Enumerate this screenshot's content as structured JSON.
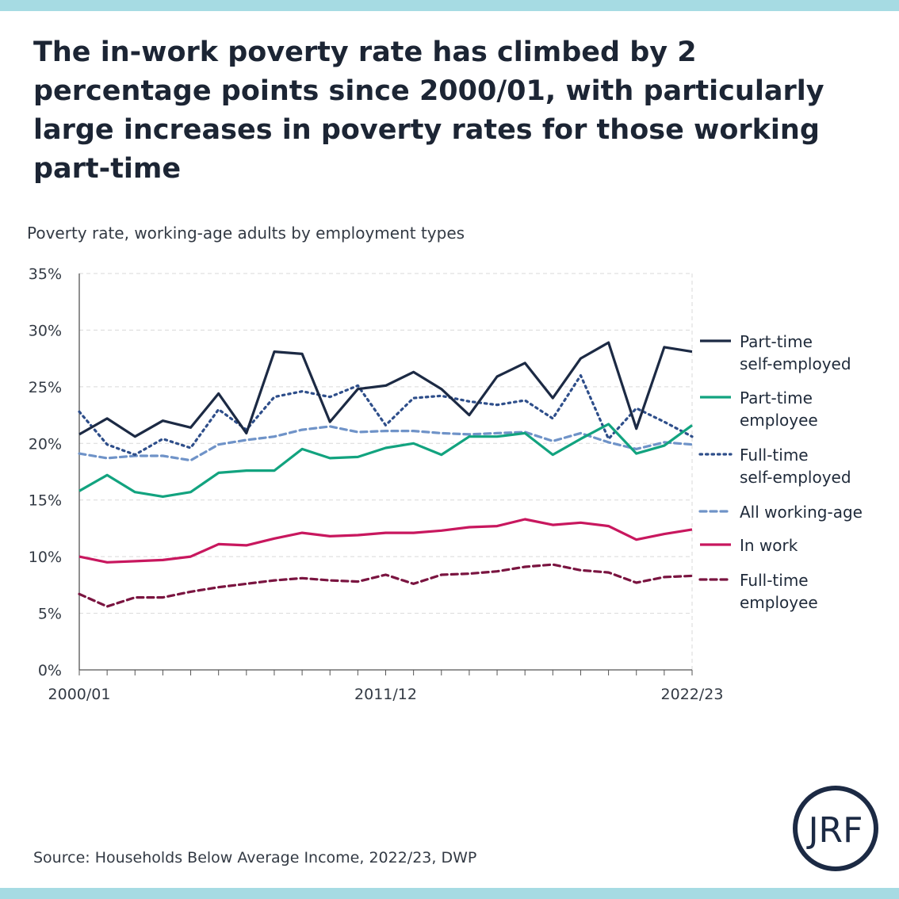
{
  "title": "The in-work poverty rate has climbed by 2 percentage points since 2000/01, with particularly large increases in poverty rates for those working part-time",
  "source": "Source: Households Below Average Income, 2022/23, DWP",
  "logo_text": "JRF",
  "chart_data": {
    "type": "line",
    "title": "",
    "subtitle": "Poverty rate, working-age adults by employment types",
    "xlabel": "",
    "ylabel": "",
    "ylim": [
      0,
      35
    ],
    "yticks": [
      "0%",
      "5%",
      "10%",
      "15%",
      "20%",
      "25%",
      "30%",
      "35%"
    ],
    "grid": true,
    "legend_position": "right",
    "categories": [
      "2000/01",
      "2001/02",
      "2002/03",
      "2003/04",
      "2004/05",
      "2005/06",
      "2006/07",
      "2007/08",
      "2008/09",
      "2009/10",
      "2010/11",
      "2011/12",
      "2012/13",
      "2013/14",
      "2014/15",
      "2015/16",
      "2016/17",
      "2017/18",
      "2018/19",
      "2019/20",
      "2020/21",
      "2021/22",
      "2022/23"
    ],
    "x_tick_labels": [
      "2000/01",
      "2011/12",
      "2022/23"
    ],
    "series": [
      {
        "name": "Part-time self-employed",
        "color": "#1c2a44",
        "style": "solid",
        "values": [
          20.8,
          22.2,
          20.6,
          22.0,
          21.4,
          24.4,
          20.9,
          28.1,
          27.9,
          21.9,
          24.8,
          25.1,
          26.3,
          24.8,
          22.5,
          25.9,
          27.1,
          24.0,
          27.5,
          28.9,
          21.3,
          28.5,
          28.1
        ]
      },
      {
        "name": "Part-time employee",
        "color": "#12a37f",
        "style": "solid",
        "values": [
          15.8,
          17.2,
          15.7,
          15.3,
          15.7,
          17.4,
          17.6,
          17.6,
          19.5,
          18.7,
          18.8,
          19.6,
          20.0,
          19.0,
          20.6,
          20.6,
          20.9,
          19.0,
          20.4,
          21.7,
          19.1,
          19.8,
          21.6
        ]
      },
      {
        "name": "Full-time self-employed",
        "color": "#2e4e8a",
        "style": "dotted",
        "values": [
          22.8,
          19.9,
          19.0,
          20.4,
          19.6,
          23.0,
          21.2,
          24.1,
          24.6,
          24.1,
          25.1,
          21.6,
          24.0,
          24.2,
          23.7,
          23.4,
          23.8,
          22.2,
          26.0,
          20.4,
          23.1,
          21.9,
          20.6
        ]
      },
      {
        "name": "All working-age",
        "color": "#6f93c8",
        "style": "dashed",
        "values": [
          19.1,
          18.7,
          18.9,
          18.9,
          18.5,
          19.9,
          20.3,
          20.6,
          21.2,
          21.5,
          21.0,
          21.1,
          21.1,
          20.9,
          20.8,
          20.9,
          21.0,
          20.2,
          20.9,
          20.1,
          19.5,
          20.1,
          19.9
        ]
      },
      {
        "name": "In work",
        "color": "#c8175e",
        "style": "solid",
        "values": [
          10.0,
          9.5,
          9.6,
          9.7,
          10.0,
          11.1,
          11.0,
          11.6,
          12.1,
          11.8,
          11.9,
          12.1,
          12.1,
          12.3,
          12.6,
          12.7,
          13.3,
          12.8,
          13.0,
          12.7,
          11.5,
          12.0,
          12.4
        ]
      },
      {
        "name": "Full-time employee",
        "color": "#7a1440",
        "style": "dashed",
        "values": [
          6.7,
          5.6,
          6.4,
          6.4,
          6.9,
          7.3,
          7.6,
          7.9,
          8.1,
          7.9,
          7.8,
          8.4,
          7.6,
          8.4,
          8.5,
          8.7,
          9.1,
          9.3,
          8.8,
          8.6,
          7.7,
          8.2,
          8.3
        ]
      }
    ],
    "legend": [
      {
        "line1": "Part-time",
        "line2": "self-employed"
      },
      {
        "line1": "Part-time",
        "line2": "employee"
      },
      {
        "line1": "Full-time",
        "line2": "self-employed"
      },
      {
        "line1": "All working-age",
        "line2": ""
      },
      {
        "line1": "In work",
        "line2": ""
      },
      {
        "line1": "Full-time",
        "line2": "employee"
      }
    ]
  }
}
